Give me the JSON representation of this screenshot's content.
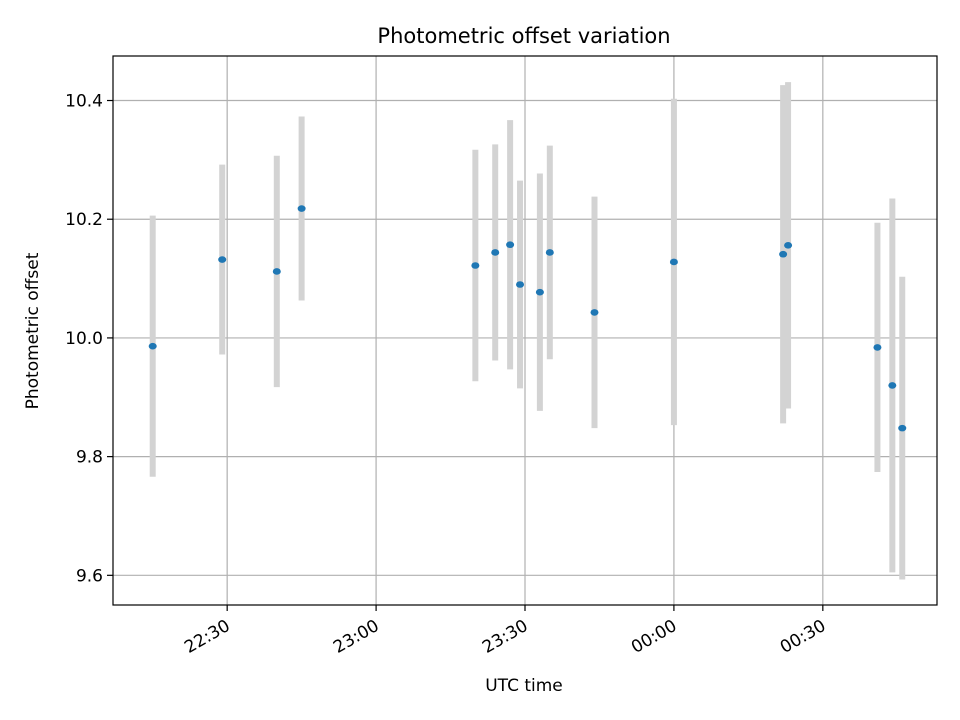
{
  "chart_data": {
    "type": "scatter",
    "title": "Photometric offset variation",
    "xlabel": "UTC time",
    "ylabel": "Photometric offset",
    "grid": true,
    "x_axis": {
      "unit": "time",
      "range": [
        "22:07",
        "00:53"
      ],
      "ticks": [
        "22:30",
        "23:00",
        "23:30",
        "00:00",
        "00:30"
      ]
    },
    "y_axis": {
      "range": [
        9.55,
        10.475
      ],
      "ticks": [
        "9.6",
        "9.8",
        "10.0",
        "10.2",
        "10.4"
      ]
    },
    "colors": {
      "point": "#1f77b4",
      "errorbar": "#d3d3d3",
      "grid": "#b0b0b0"
    },
    "points": [
      {
        "time": "22:15",
        "y": 9.986,
        "y_low": 9.766,
        "y_high": 10.206
      },
      {
        "time": "22:29",
        "y": 10.132,
        "y_low": 9.972,
        "y_high": 10.292
      },
      {
        "time": "22:40",
        "y": 10.112,
        "y_low": 9.917,
        "y_high": 10.307
      },
      {
        "time": "22:45",
        "y": 10.218,
        "y_low": 10.063,
        "y_high": 10.373
      },
      {
        "time": "23:20",
        "y": 10.122,
        "y_low": 9.927,
        "y_high": 10.317
      },
      {
        "time": "23:24",
        "y": 10.144,
        "y_low": 9.962,
        "y_high": 10.326
      },
      {
        "time": "23:27",
        "y": 10.157,
        "y_low": 9.947,
        "y_high": 10.367
      },
      {
        "time": "23:29",
        "y": 10.09,
        "y_low": 9.915,
        "y_high": 10.265
      },
      {
        "time": "23:33",
        "y": 10.077,
        "y_low": 9.877,
        "y_high": 10.277
      },
      {
        "time": "23:35",
        "y": 10.144,
        "y_low": 9.964,
        "y_high": 10.324
      },
      {
        "time": "23:44",
        "y": 10.043,
        "y_low": 9.848,
        "y_high": 10.238
      },
      {
        "time": "00:00",
        "y": 10.128,
        "y_low": 9.853,
        "y_high": 10.403
      },
      {
        "time": "00:22",
        "y": 10.141,
        "y_low": 9.856,
        "y_high": 10.426
      },
      {
        "time": "00:23",
        "y": 10.156,
        "y_low": 9.881,
        "y_high": 10.431
      },
      {
        "time": "00:41",
        "y": 9.984,
        "y_low": 9.774,
        "y_high": 10.194
      },
      {
        "time": "00:44",
        "y": 9.92,
        "y_low": 9.605,
        "y_high": 10.235
      },
      {
        "time": "00:46",
        "y": 9.848,
        "y_low": 9.593,
        "y_high": 10.103
      }
    ]
  }
}
